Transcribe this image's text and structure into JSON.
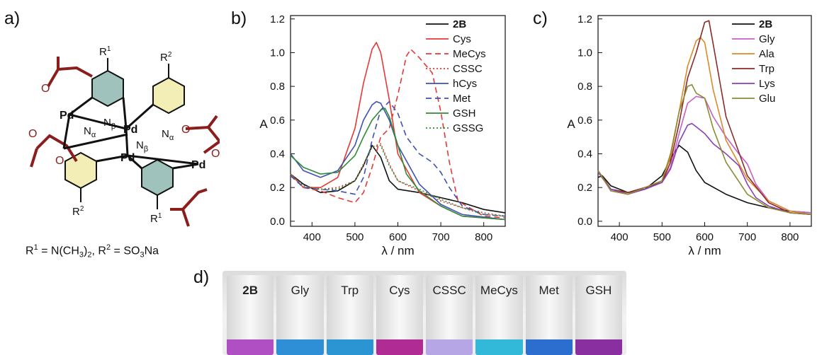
{
  "panels": {
    "a": "a)",
    "b": "b)",
    "c": "c)",
    "d": "d)"
  },
  "molecule": {
    "formula_parts": {
      "r1": "R",
      "r1_sup": "1",
      "eq1": " = N(CH",
      "sub3": "3",
      "close1": ")",
      "sub2": "2",
      "comma": ", ",
      "r2": "R",
      "r2_sup": "2",
      "eq2": " = SO",
      "sub3b": "3",
      "na": "Na"
    },
    "atoms": {
      "pd": "Pd",
      "o": "O",
      "n": "N",
      "alpha": "α",
      "beta": "β",
      "r1": "R",
      "r2": "R",
      "sup1": "1",
      "sup2": "2"
    },
    "colors": {
      "acetate": "#8b1d1d",
      "ring_yellow": "#f3eeb6",
      "ring_teal": "#9fc3bc"
    }
  },
  "chart_data": [
    {
      "type": "line",
      "panel": "b)",
      "ylabel": "A",
      "xlabel": "λ / nm",
      "xlim": [
        350,
        850
      ],
      "ylim": [
        -0.03,
        1.22
      ],
      "xticks": [
        400,
        500,
        600,
        700,
        800
      ],
      "yticks": [
        0.0,
        0.2,
        0.4,
        0.6,
        0.8,
        1.0,
        1.2
      ],
      "legend_position": "top-right",
      "series": [
        {
          "name": "2B",
          "color": "#111111",
          "dash": "solid",
          "bold": true,
          "x": [
            350,
            380,
            420,
            460,
            500,
            520,
            540,
            560,
            580,
            600,
            650,
            700,
            750,
            800,
            850
          ],
          "y": [
            0.28,
            0.22,
            0.17,
            0.18,
            0.24,
            0.33,
            0.45,
            0.38,
            0.24,
            0.19,
            0.17,
            0.14,
            0.11,
            0.07,
            0.05
          ]
        },
        {
          "name": "Cys",
          "color": "#e53935",
          "dash": "solid",
          "x": [
            350,
            380,
            420,
            460,
            500,
            520,
            540,
            550,
            560,
            580,
            600,
            650,
            700,
            750,
            850
          ],
          "y": [
            0.28,
            0.2,
            0.2,
            0.26,
            0.55,
            0.82,
            1.02,
            1.06,
            1.0,
            0.72,
            0.4,
            0.17,
            0.09,
            0.03,
            0.01
          ]
        },
        {
          "name": "MeCys",
          "color": "#e53935",
          "dash": "8,5",
          "x": [
            350,
            380,
            420,
            460,
            500,
            520,
            540,
            560,
            580,
            600,
            620,
            630,
            650,
            680,
            700,
            720,
            740,
            800,
            850
          ],
          "y": [
            0.28,
            0.2,
            0.18,
            0.14,
            0.11,
            0.17,
            0.32,
            0.5,
            0.55,
            0.75,
            0.98,
            1.02,
            0.97,
            0.88,
            0.65,
            0.35,
            0.12,
            0.03,
            0.02
          ]
        },
        {
          "name": "CSSC",
          "color": "#e53935",
          "dash": "2,3",
          "x": [
            350,
            380,
            420,
            460,
            500,
            520,
            540,
            560,
            580,
            600,
            650,
            700,
            750,
            800,
            850
          ],
          "y": [
            0.28,
            0.21,
            0.19,
            0.2,
            0.24,
            0.33,
            0.44,
            0.46,
            0.34,
            0.24,
            0.18,
            0.12,
            0.08,
            0.05,
            0.03
          ]
        },
        {
          "name": "hCys",
          "color": "#3f51b5",
          "dash": "solid",
          "x": [
            350,
            380,
            420,
            460,
            500,
            520,
            540,
            550,
            560,
            580,
            600,
            650,
            700,
            750,
            850
          ],
          "y": [
            0.4,
            0.3,
            0.26,
            0.3,
            0.45,
            0.6,
            0.69,
            0.71,
            0.7,
            0.6,
            0.45,
            0.22,
            0.1,
            0.04,
            0.01
          ]
        },
        {
          "name": "Met",
          "color": "#3f51b5",
          "dash": "8,5",
          "x": [
            350,
            380,
            420,
            460,
            500,
            520,
            540,
            560,
            580,
            600,
            620,
            650,
            680,
            700,
            720,
            750,
            800,
            850
          ],
          "y": [
            0.27,
            0.2,
            0.19,
            0.18,
            0.16,
            0.26,
            0.48,
            0.66,
            0.71,
            0.64,
            0.5,
            0.4,
            0.35,
            0.29,
            0.2,
            0.09,
            0.04,
            0.03
          ]
        },
        {
          "name": "GSH",
          "color": "#2e8b3a",
          "dash": "solid",
          "x": [
            350,
            380,
            420,
            460,
            500,
            520,
            540,
            560,
            570,
            580,
            600,
            620,
            650,
            700,
            750,
            850
          ],
          "y": [
            0.39,
            0.32,
            0.28,
            0.29,
            0.39,
            0.5,
            0.6,
            0.66,
            0.67,
            0.62,
            0.45,
            0.28,
            0.18,
            0.09,
            0.03,
            0.01
          ]
        },
        {
          "name": "GSSG",
          "color": "#2e8b3a",
          "dash": "2,3",
          "x": [
            350,
            380,
            420,
            460,
            500,
            520,
            540,
            560,
            580,
            600,
            650,
            700,
            750,
            800,
            850
          ],
          "y": [
            0.28,
            0.21,
            0.19,
            0.19,
            0.24,
            0.34,
            0.44,
            0.45,
            0.33,
            0.24,
            0.19,
            0.13,
            0.08,
            0.04,
            0.03
          ]
        }
      ]
    },
    {
      "type": "line",
      "panel": "c)",
      "ylabel": "A",
      "xlabel": "λ / nm",
      "xlim": [
        350,
        850
      ],
      "ylim": [
        -0.03,
        1.22
      ],
      "xticks": [
        400,
        500,
        600,
        700,
        800
      ],
      "yticks": [
        0.0,
        0.2,
        0.4,
        0.6,
        0.8,
        1.0,
        1.2
      ],
      "legend_position": "top-right",
      "series": [
        {
          "name": "2B",
          "color": "#111111",
          "bold": true,
          "x": [
            350,
            360,
            380,
            420,
            460,
            500,
            520,
            540,
            560,
            580,
            600,
            650,
            700,
            750,
            800,
            850
          ],
          "y": [
            0.26,
            0.27,
            0.21,
            0.17,
            0.19,
            0.27,
            0.37,
            0.45,
            0.41,
            0.3,
            0.23,
            0.16,
            0.11,
            0.08,
            0.06,
            0.05
          ]
        },
        {
          "name": "Gly",
          "color": "#c65fc6",
          "x": [
            350,
            380,
            420,
            460,
            500,
            520,
            540,
            560,
            580,
            600,
            620,
            650,
            680,
            700,
            720,
            750,
            800,
            850
          ],
          "y": [
            0.3,
            0.18,
            0.16,
            0.2,
            0.23,
            0.32,
            0.52,
            0.7,
            0.74,
            0.73,
            0.62,
            0.5,
            0.4,
            0.34,
            0.22,
            0.12,
            0.06,
            0.05
          ]
        },
        {
          "name": "Ala",
          "color": "#d98a2b",
          "x": [
            350,
            380,
            420,
            460,
            500,
            520,
            540,
            560,
            580,
            590,
            600,
            620,
            650,
            700,
            750,
            800,
            850
          ],
          "y": [
            0.3,
            0.19,
            0.17,
            0.2,
            0.24,
            0.38,
            0.65,
            0.92,
            1.07,
            1.09,
            1.06,
            0.78,
            0.48,
            0.25,
            0.12,
            0.06,
            0.04
          ]
        },
        {
          "name": "Trp",
          "color": "#8b2a2a",
          "x": [
            350,
            380,
            420,
            460,
            500,
            520,
            540,
            560,
            580,
            600,
            610,
            620,
            650,
            700,
            750,
            800,
            850
          ],
          "y": [
            0.3,
            0.19,
            0.17,
            0.2,
            0.23,
            0.35,
            0.58,
            0.85,
            1.0,
            1.18,
            1.19,
            1.05,
            0.62,
            0.27,
            0.11,
            0.05,
            0.04
          ]
        },
        {
          "name": "Lys",
          "color": "#8a3fb5",
          "x": [
            350,
            380,
            420,
            460,
            500,
            520,
            540,
            560,
            570,
            580,
            600,
            620,
            650,
            680,
            700,
            720,
            750,
            800,
            850
          ],
          "y": [
            0.29,
            0.19,
            0.16,
            0.19,
            0.23,
            0.31,
            0.47,
            0.57,
            0.58,
            0.56,
            0.52,
            0.46,
            0.4,
            0.33,
            0.22,
            0.14,
            0.09,
            0.05,
            0.04
          ]
        },
        {
          "name": "Glu",
          "color": "#8b8b34",
          "x": [
            350,
            380,
            420,
            460,
            500,
            520,
            540,
            560,
            570,
            580,
            600,
            620,
            650,
            700,
            750,
            800,
            850
          ],
          "y": [
            0.3,
            0.18,
            0.16,
            0.2,
            0.24,
            0.4,
            0.65,
            0.8,
            0.81,
            0.76,
            0.73,
            0.55,
            0.35,
            0.16,
            0.08,
            0.05,
            0.04
          ]
        }
      ]
    }
  ],
  "vials": {
    "items": [
      {
        "label": "2B",
        "bold": true,
        "color": "#b04fc4"
      },
      {
        "label": "Gly",
        "bold": false,
        "color": "#2f8fd6"
      },
      {
        "label": "Trp",
        "bold": false,
        "color": "#2b95d3"
      },
      {
        "label": "Cys",
        "bold": false,
        "color": "#b02c94"
      },
      {
        "label": "CSSC",
        "bold": false,
        "color": "#b7a6e6"
      },
      {
        "label": "MeCys",
        "bold": false,
        "color": "#32b9d9"
      },
      {
        "label": "Met",
        "bold": false,
        "color": "#2c6ed0"
      },
      {
        "label": "GSH",
        "bold": false,
        "color": "#8a2f9f"
      }
    ]
  }
}
